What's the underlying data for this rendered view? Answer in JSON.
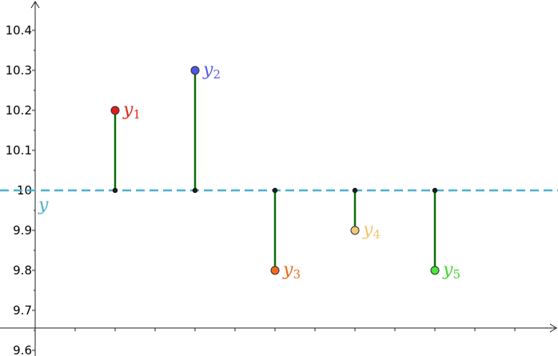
{
  "chart_data": {
    "type": "scatter",
    "x": [
      1,
      2,
      3,
      4,
      5
    ],
    "series": [
      {
        "values": [
          10.2,
          10.3,
          9.8,
          9.9,
          9.8
        ],
        "labels": [
          {
            "base": "y",
            "sub": "1"
          },
          {
            "base": "y",
            "sub": "2"
          },
          {
            "base": "y",
            "sub": "3"
          },
          {
            "base": "y",
            "sub": "4"
          },
          {
            "base": "y",
            "sub": "5"
          }
        ],
        "colors": [
          "#e31b1b",
          "#4f55e8",
          "#f26b1d",
          "#f5c875",
          "#4ae43a"
        ],
        "label_colors": [
          "#dc2a1c",
          "#5a5ce8",
          "#ee6a1e",
          "#f2c370",
          "#42d733"
        ]
      }
    ],
    "reference_line": {
      "y": 10,
      "label": "y",
      "color": "#4bb1cf",
      "style": "dashed"
    },
    "residual_color": "#0f6b0f",
    "yticks": [
      9.6,
      9.7,
      9.8,
      9.9,
      10,
      10.1,
      10.2,
      10.3,
      10.4
    ],
    "ytick_labels": [
      "9.6",
      "9.7",
      "9.8",
      "9.9",
      "10",
      "10.1",
      "10.2",
      "10.3",
      "10.4"
    ],
    "ylim": [
      9.6,
      10.47
    ],
    "xlim": [
      0,
      6.56
    ],
    "grid": false,
    "title": "",
    "xlabel": "",
    "ylabel": ""
  }
}
